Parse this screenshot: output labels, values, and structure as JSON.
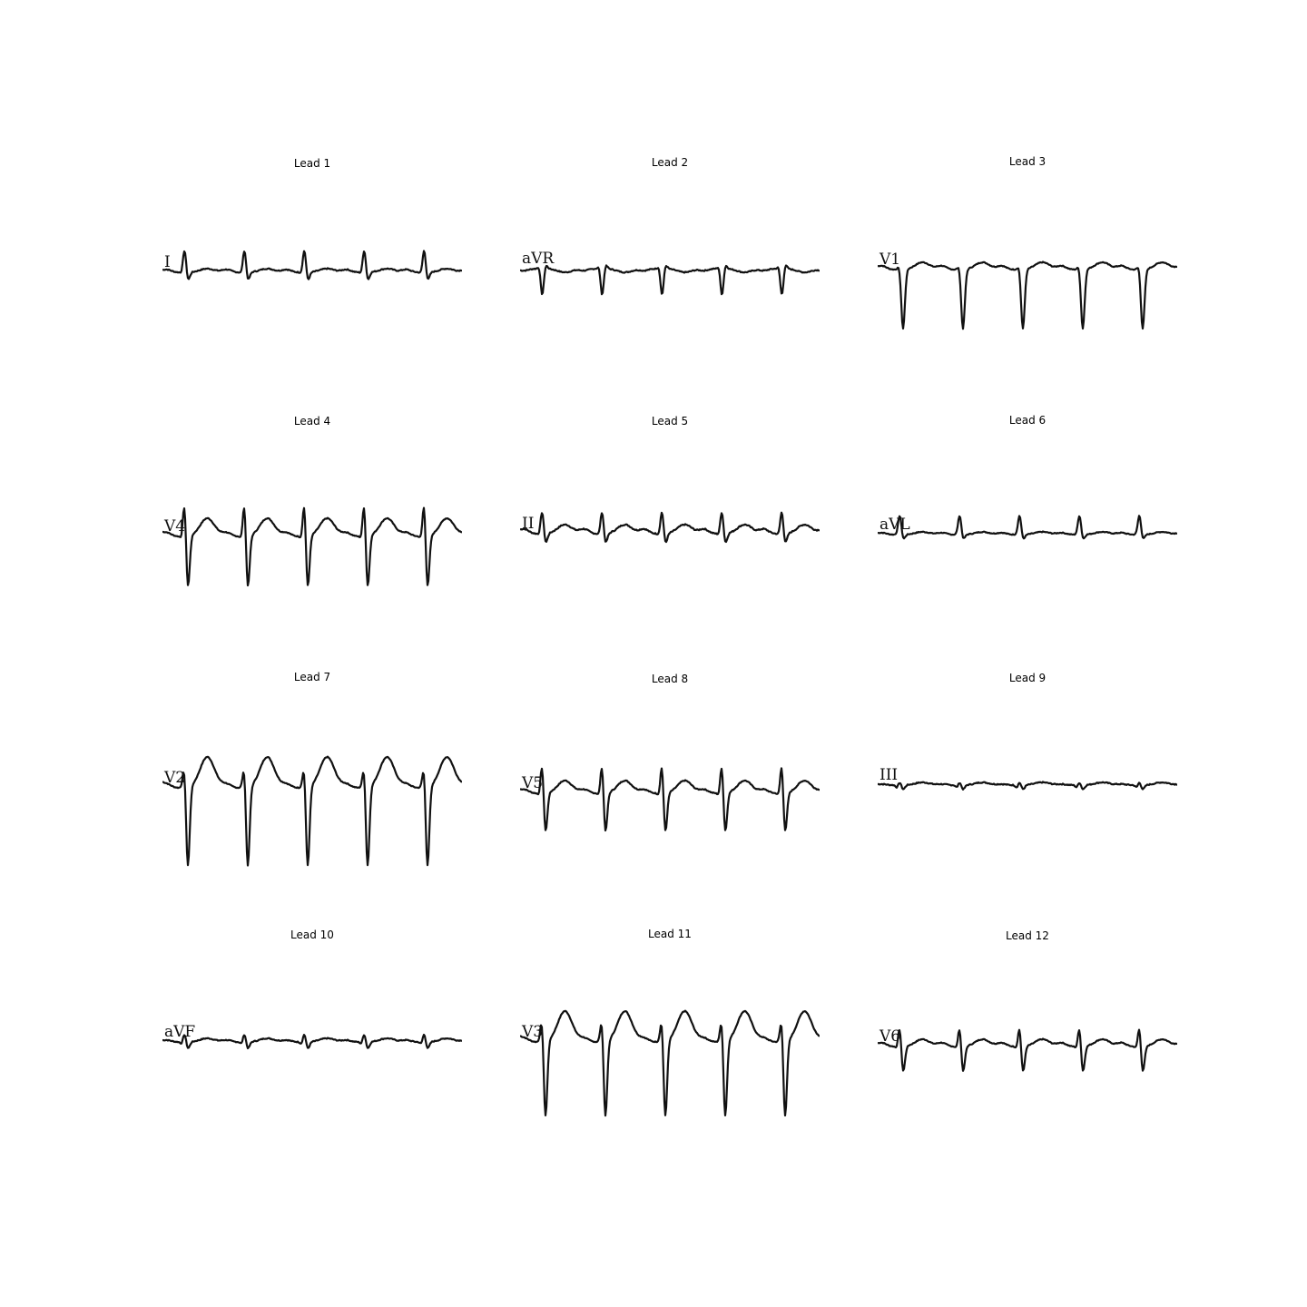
{
  "figure": {
    "panels": [
      {
        "title": "Lead 1",
        "label": "I",
        "morph": "lead1"
      },
      {
        "title": "Lead 2",
        "label": "aVR",
        "morph": "avr"
      },
      {
        "title": "Lead 3",
        "label": "V1",
        "morph": "v1"
      },
      {
        "title": "Lead 4",
        "label": "V4",
        "morph": "v4"
      },
      {
        "title": "Lead 5",
        "label": "II",
        "morph": "lead2"
      },
      {
        "title": "Lead 6",
        "label": "aVL",
        "morph": "avl"
      },
      {
        "title": "Lead 7",
        "label": "V2",
        "morph": "v2"
      },
      {
        "title": "Lead 8",
        "label": "V5",
        "morph": "v5"
      },
      {
        "title": "Lead 9",
        "label": "III",
        "morph": "lead3"
      },
      {
        "title": "Lead 10",
        "label": "aVF",
        "morph": "avf"
      },
      {
        "title": "Lead 11",
        "label": "V3",
        "morph": "v3"
      },
      {
        "title": "Lead 12",
        "label": "V6",
        "morph": "v6"
      }
    ],
    "beats_per_strip": 5,
    "trace_color": "#111111"
  }
}
